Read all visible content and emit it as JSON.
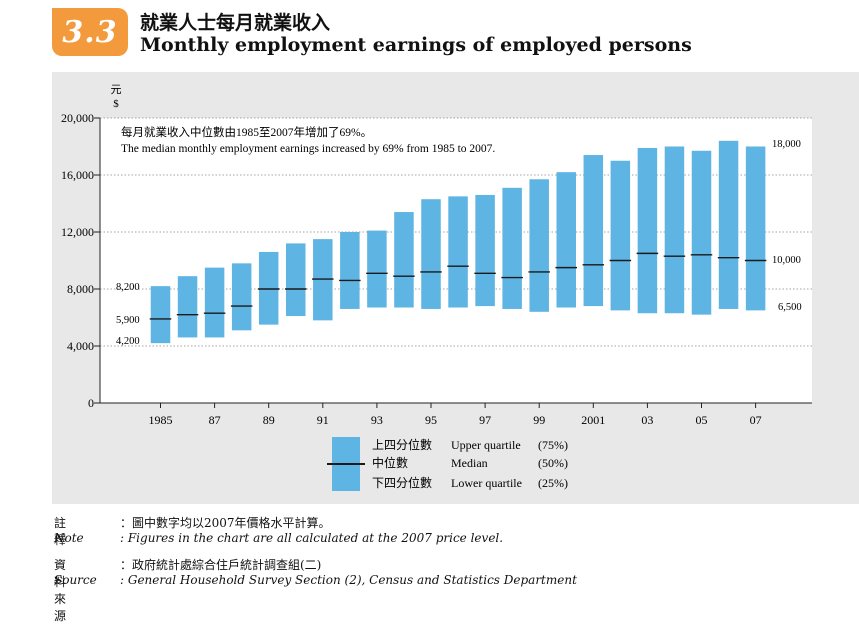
{
  "header": {
    "badge": "3.3",
    "title_zh": "就業人士每月就業收入",
    "title_en": "Monthly employment earnings of employed persons"
  },
  "chart_data": {
    "type": "bar",
    "subtype": "floating-range-with-median",
    "y_unit_zh": "元",
    "y_unit": "$",
    "ylim": [
      0,
      20000
    ],
    "y_ticks": [
      "0",
      "4,000",
      "8,000",
      "12,000",
      "16,000",
      "20,000"
    ],
    "grid": "horizontal dotted",
    "x": [
      1985,
      1986,
      1987,
      1988,
      1989,
      1990,
      1991,
      1992,
      1993,
      1994,
      1995,
      1996,
      1997,
      1998,
      1999,
      2000,
      2001,
      2002,
      2003,
      2004,
      2005,
      2006,
      2007
    ],
    "x_tick_labels": [
      "1985",
      "87",
      "89",
      "91",
      "93",
      "95",
      "97",
      "99",
      "2001",
      "03",
      "05",
      "07"
    ],
    "series": [
      {
        "name": "Upper quartile",
        "values": [
          8200,
          8900,
          9500,
          9800,
          10600,
          11200,
          11500,
          12000,
          12100,
          13400,
          14300,
          14500,
          14600,
          15100,
          15700,
          16200,
          17400,
          17000,
          17900,
          18000,
          17700,
          18400,
          18000
        ]
      },
      {
        "name": "Median",
        "values": [
          5900,
          6200,
          6300,
          6800,
          8000,
          8000,
          8700,
          8600,
          9100,
          8900,
          9200,
          9600,
          9100,
          8800,
          9200,
          9500,
          9700,
          10000,
          10500,
          10300,
          10400,
          10200,
          10000
        ]
      },
      {
        "name": "Lower quartile",
        "values": [
          4200,
          4600,
          4600,
          5100,
          5500,
          6100,
          5800,
          6600,
          6700,
          6700,
          6600,
          6700,
          6800,
          6600,
          6400,
          6700,
          6800,
          6500,
          6300,
          6300,
          6200,
          6600,
          6500
        ]
      }
    ],
    "data_labels": {
      "left": [
        "8,200",
        "5,900",
        "4,200"
      ],
      "right": [
        "18,000",
        "10,000",
        "6,500"
      ]
    },
    "annotation_zh": "每月就業收入中位數由1985至2007年增加了69%。",
    "annotation_en": "The median monthly employment earnings increased by 69% from 1985 to 2007.",
    "legend": {
      "placement": "bottom-center",
      "items": [
        {
          "zh": "上四分位數",
          "en": "Upper quartile",
          "pct": "(75%)"
        },
        {
          "zh": "中位數",
          "en": "Median",
          "pct": "(50%)"
        },
        {
          "zh": "下四分位數",
          "en": "Lower quartile",
          "pct": "(25%)"
        }
      ]
    },
    "colors": {
      "bar": "#5eb4e3",
      "median": "#1a1a1a",
      "grid": "#888888",
      "panel": "#e8e8e8"
    }
  },
  "notes": {
    "note_label_zh": "註釋",
    "note_text_zh": "：圖中數字均以2007年價格水平計算。",
    "note_label_en": "Note",
    "note_text_en": ": Figures in the chart are all calculated at the 2007 price level.",
    "source_label_zh": "資料來源",
    "source_text_zh": "：政府統計處綜合住戶統計調查組(二)",
    "source_label_en": "Source",
    "source_text_en": ": General Household Survey Section (2), Census and Statistics Department"
  }
}
